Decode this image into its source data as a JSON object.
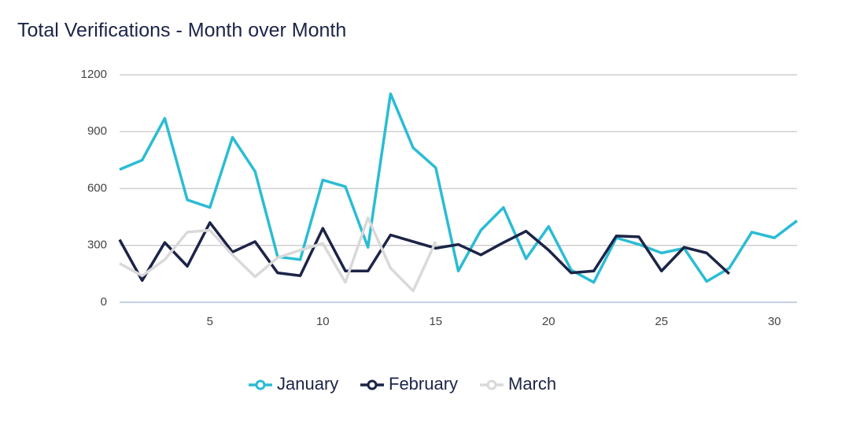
{
  "chart_data": {
    "type": "line",
    "title": "Total Verifications - Month over Month",
    "x": [
      1,
      2,
      3,
      4,
      5,
      6,
      7,
      8,
      9,
      10,
      11,
      12,
      13,
      14,
      15,
      16,
      17,
      18,
      19,
      20,
      21,
      22,
      23,
      24,
      25,
      26,
      27,
      28,
      29,
      30,
      31
    ],
    "series": [
      {
        "name": "January",
        "color": "#2bbcd4",
        "values": [
          700,
          750,
          970,
          540,
          500,
          870,
          690,
          240,
          225,
          645,
          610,
          290,
          1100,
          815,
          710,
          165,
          380,
          500,
          230,
          400,
          170,
          105,
          340,
          305,
          260,
          285,
          110,
          180,
          370,
          340,
          430
        ]
      },
      {
        "name": "February",
        "color": "#1c2447",
        "values": [
          330,
          115,
          315,
          190,
          420,
          265,
          320,
          155,
          140,
          390,
          165,
          165,
          355,
          320,
          285,
          305,
          250,
          315,
          375,
          275,
          155,
          165,
          350,
          345,
          165,
          290,
          260,
          150,
          null,
          null,
          null
        ]
      },
      {
        "name": "March",
        "color": "#d9d9d9",
        "values": [
          205,
          140,
          225,
          370,
          380,
          250,
          135,
          235,
          275,
          310,
          105,
          445,
          180,
          60,
          320,
          null,
          null,
          null,
          null,
          null,
          null,
          null,
          null,
          null,
          null,
          null,
          null,
          null,
          null,
          null,
          null
        ]
      }
    ],
    "xlim": [
      1,
      31
    ],
    "xticks": [
      5,
      10,
      15,
      20,
      25,
      30
    ],
    "ylim": [
      0,
      1200
    ],
    "yticks": [
      0,
      300,
      600,
      900,
      1200
    ],
    "grid": true,
    "legend": "bottom"
  }
}
